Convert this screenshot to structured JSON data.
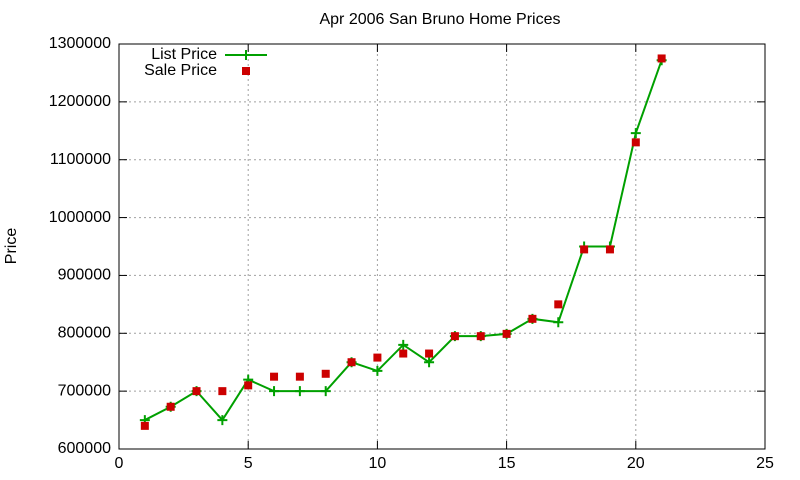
{
  "chart_data": {
    "type": "line",
    "title": "Apr 2006 San Bruno Home Prices",
    "y_label": "Price",
    "x": [
      1,
      2,
      3,
      4,
      5,
      6,
      7,
      8,
      9,
      10,
      11,
      12,
      13,
      14,
      15,
      16,
      17,
      18,
      19,
      20,
      21
    ],
    "series": [
      {
        "name": "List Price",
        "color": "#00a000",
        "style": "linespoints",
        "values": [
          650000,
          673000,
          700000,
          650000,
          720000,
          700000,
          700000,
          700000,
          750000,
          735000,
          780000,
          750000,
          795000,
          795000,
          799000,
          825000,
          819000,
          950000,
          950000,
          1146000,
          1272000
        ]
      },
      {
        "name": "Sale Price",
        "color": "#cc0000",
        "style": "points",
        "values": [
          640000,
          673000,
          700000,
          700000,
          710000,
          725000,
          725000,
          730000,
          750000,
          758000,
          765000,
          765000,
          795000,
          795000,
          799000,
          825000,
          850000,
          945000,
          945000,
          1130000,
          1275000
        ]
      }
    ],
    "xlim": [
      0,
      25
    ],
    "xticks": [
      0,
      5,
      10,
      15,
      20,
      25
    ],
    "ylim": [
      600000,
      1300000
    ],
    "yticks": [
      600000,
      700000,
      800000,
      900000,
      1000000,
      1100000,
      1200000,
      1300000
    ],
    "grid": true,
    "legend": "top-left"
  }
}
